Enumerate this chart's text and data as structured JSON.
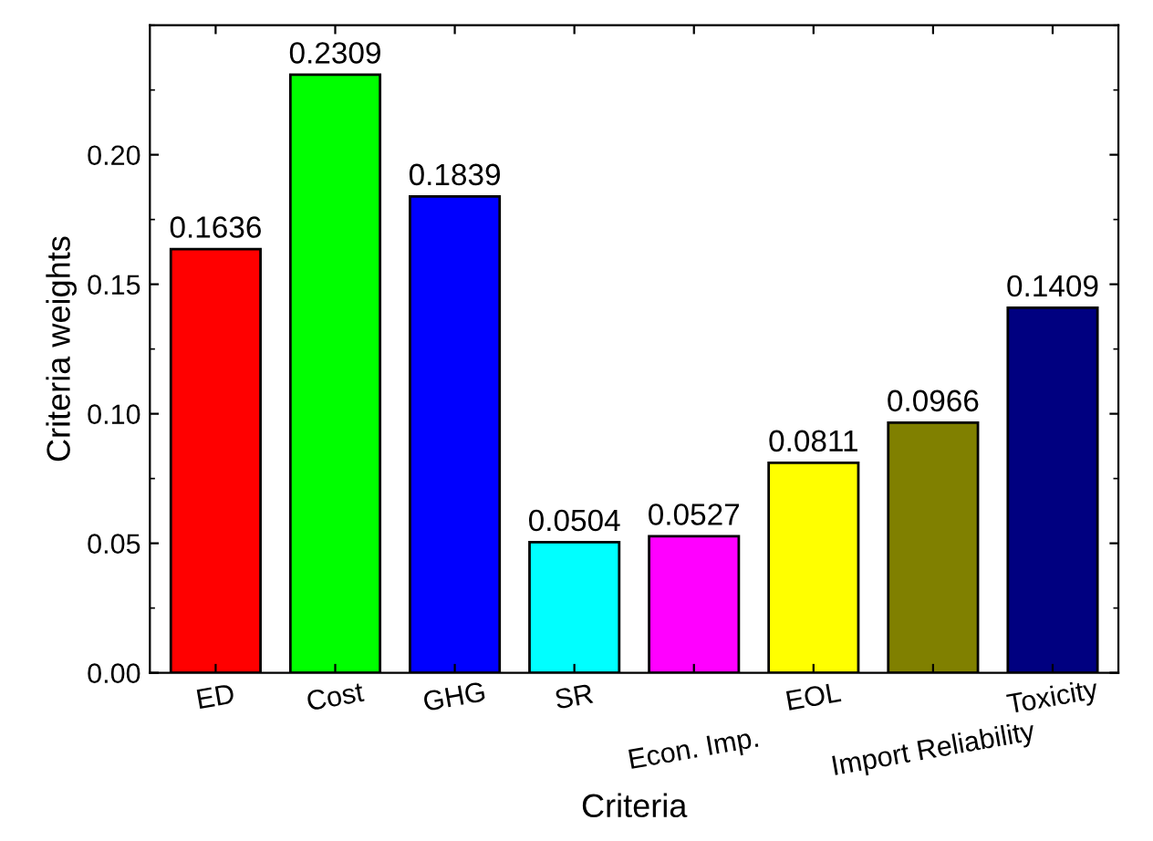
{
  "chart_data": {
    "type": "bar",
    "xlabel": "Criteria",
    "ylabel": "Criteria weights",
    "categories": [
      "ED",
      "Cost",
      "GHG",
      "SR",
      "Econ. Imp.",
      "EOL",
      "Import Reliability",
      "Toxicity"
    ],
    "values": [
      0.1636,
      0.2309,
      0.1839,
      0.0504,
      0.0527,
      0.0811,
      0.0966,
      0.1409
    ],
    "colors": [
      "#ff0000",
      "#00ff00",
      "#0000ff",
      "#00ffff",
      "#ff00ff",
      "#ffff00",
      "#808000",
      "#000080"
    ],
    "ylim": [
      0,
      0.25
    ],
    "yticks": [
      {
        "value": 0,
        "label": "0.00"
      },
      {
        "value": 0.05,
        "label": "0.05"
      },
      {
        "value": 0.1,
        "label": "0.10"
      },
      {
        "value": 0.15,
        "label": "0.15"
      },
      {
        "value": 0.2,
        "label": "0.20"
      }
    ],
    "data_labels": true,
    "grid": false,
    "legend": false
  }
}
